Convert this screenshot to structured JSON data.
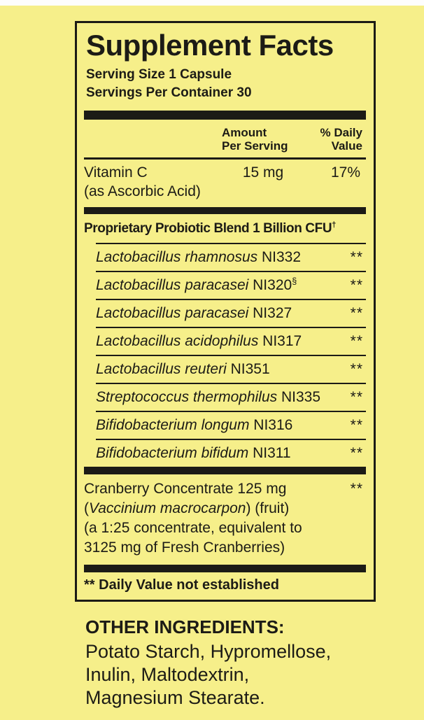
{
  "colors": {
    "background": "#f6ef8a",
    "ink": "#1c1b16",
    "top_strip": "#fdfdfd"
  },
  "supplement_facts": {
    "title": "Supplement Facts",
    "serving_size": "Serving Size 1 Capsule",
    "servings_per_container": "Servings Per Container 30",
    "columns": {
      "amount_line1": "Amount",
      "amount_line2": "Per Serving",
      "dv_line1": "% Daily",
      "dv_line2": "Value"
    },
    "vitamin_c": {
      "name": "Vitamin C",
      "form": "(as Ascorbic Acid)",
      "amount": "15 mg",
      "daily_value": "17%"
    },
    "probiotic_blend": {
      "heading": "Proprietary Probiotic Blend 1 Billion CFU",
      "heading_superscript": "†",
      "items": [
        {
          "species": "Lactobacillus rhamnosus",
          "strain": "NI332",
          "daily_value": "**"
        },
        {
          "species": "Lactobacillus paracasei",
          "strain": "NI320",
          "superscript": "§",
          "daily_value": "**"
        },
        {
          "species": "Lactobacillus paracasei",
          "strain": "NI327",
          "daily_value": "**"
        },
        {
          "species": "Lactobacillus acidophilus",
          "strain": "NI317",
          "daily_value": "**"
        },
        {
          "species": "Lactobacillus reuteri",
          "strain": "NI351",
          "daily_value": "**"
        },
        {
          "species": "Streptococcus thermophilus",
          "strain": "NI335",
          "daily_value": "**"
        },
        {
          "species": "Bifidobacterium longum",
          "strain": "NI316",
          "daily_value": "**"
        },
        {
          "species": "Bifidobacterium bifidum",
          "strain": "NI311",
          "daily_value": "**"
        }
      ]
    },
    "cranberry": {
      "name_line": "Cranberry Concentrate 125 mg",
      "daily_value": "**",
      "latin_open": "(",
      "latin_name": "Vaccinium macrocarpon",
      "latin_close": ") (fruit)",
      "detail_line1": "(a 1:25 concentrate, equivalent to",
      "detail_line2": "3125 mg of Fresh Cranberries)"
    },
    "footnote": "** Daily Value not established"
  },
  "other_ingredients": {
    "heading": "OTHER INGREDIENTS:",
    "lines": [
      "Potato Starch, Hypromellose,",
      "Inulin, Maltodextrin,",
      "Magnesium Stearate."
    ]
  }
}
